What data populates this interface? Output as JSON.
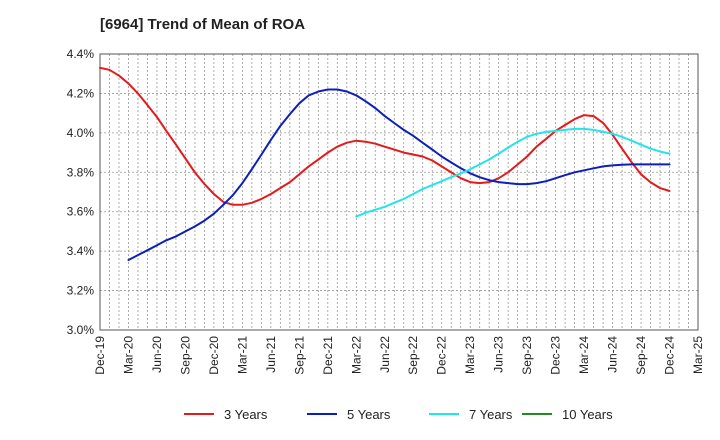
{
  "chart_data": {
    "type": "line",
    "title": "[6964]  Trend of Mean of ROA",
    "xlabel": "",
    "ylabel": "",
    "ylim": [
      3.0,
      4.4
    ],
    "yticks": [
      3.0,
      3.2,
      3.4,
      3.6,
      3.8,
      4.0,
      4.2,
      4.4
    ],
    "ytick_labels": [
      "3.0%",
      "3.2%",
      "3.4%",
      "3.6%",
      "3.8%",
      "4.0%",
      "4.2%",
      "4.4%"
    ],
    "x_categories": [
      "Dec-19",
      "Mar-20",
      "Jun-20",
      "Sep-20",
      "Dec-20",
      "Mar-21",
      "Jun-21",
      "Sep-21",
      "Dec-21",
      "Mar-22",
      "Jun-22",
      "Sep-22",
      "Dec-22",
      "Mar-23",
      "Jun-23",
      "Sep-23",
      "Dec-23",
      "Mar-24",
      "Jun-24",
      "Sep-24",
      "Dec-24",
      "Mar-25"
    ],
    "grid": true,
    "legend_position": "bottom",
    "series": [
      {
        "name": "3 Years",
        "color": "#e41a1c",
        "x": [
          0,
          0.33,
          0.67,
          1,
          1.33,
          1.67,
          2,
          2.33,
          2.67,
          3,
          3.33,
          3.67,
          4,
          4.33,
          4.67,
          5,
          5.33,
          5.67,
          6,
          6.33,
          6.67,
          7,
          7.33,
          7.67,
          8,
          8.33,
          8.67,
          9,
          9.33,
          9.67,
          10,
          10.33,
          10.67,
          11,
          11.33,
          11.67,
          12,
          12.33,
          12.67,
          13,
          13.33,
          13.67,
          14,
          14.33,
          14.67,
          15,
          15.33,
          15.67,
          16,
          16.33,
          16.67,
          17,
          17.33,
          17.67,
          18,
          18.33,
          18.67,
          19,
          19.33,
          19.67,
          20
        ],
        "values": [
          4.33,
          4.32,
          4.29,
          4.25,
          4.2,
          4.14,
          4.08,
          4.01,
          3.94,
          3.87,
          3.8,
          3.74,
          3.69,
          3.65,
          3.635,
          3.635,
          3.645,
          3.665,
          3.69,
          3.72,
          3.75,
          3.79,
          3.83,
          3.865,
          3.9,
          3.93,
          3.95,
          3.96,
          3.955,
          3.945,
          3.93,
          3.915,
          3.9,
          3.89,
          3.88,
          3.86,
          3.83,
          3.8,
          3.77,
          3.75,
          3.745,
          3.75,
          3.77,
          3.8,
          3.84,
          3.88,
          3.93,
          3.97,
          4.01,
          4.04,
          4.07,
          4.09,
          4.085,
          4.05,
          3.99,
          3.92,
          3.85,
          3.79,
          3.75,
          3.72,
          3.705
        ]
      },
      {
        "name": "5 Years",
        "color": "#0d1fb8",
        "x": [
          1,
          1.33,
          1.67,
          2,
          2.33,
          2.67,
          3,
          3.33,
          3.67,
          4,
          4.33,
          4.67,
          5,
          5.33,
          5.67,
          6,
          6.33,
          6.67,
          7,
          7.33,
          7.67,
          8,
          8.33,
          8.67,
          9,
          9.33,
          9.67,
          10,
          10.33,
          10.67,
          11,
          11.33,
          11.67,
          12,
          12.33,
          12.67,
          13,
          13.33,
          13.67,
          14,
          14.33,
          14.67,
          15,
          15.33,
          15.67,
          16,
          16.33,
          16.67,
          17,
          17.33,
          17.67,
          18,
          18.33,
          18.67,
          19,
          19.33,
          19.67,
          20
        ],
        "values": [
          3.355,
          3.38,
          3.405,
          3.43,
          3.455,
          3.475,
          3.5,
          3.525,
          3.555,
          3.59,
          3.635,
          3.685,
          3.745,
          3.815,
          3.89,
          3.965,
          4.035,
          4.095,
          4.15,
          4.19,
          4.21,
          4.22,
          4.22,
          4.21,
          4.19,
          4.16,
          4.125,
          4.085,
          4.05,
          4.015,
          3.985,
          3.95,
          3.915,
          3.88,
          3.85,
          3.82,
          3.795,
          3.775,
          3.76,
          3.75,
          3.745,
          3.74,
          3.74,
          3.745,
          3.755,
          3.77,
          3.785,
          3.8,
          3.81,
          3.82,
          3.83,
          3.835,
          3.838,
          3.84,
          3.84,
          3.84,
          3.84,
          3.84
        ]
      },
      {
        "name": "7 Years",
        "color": "#22e5ec",
        "x": [
          9,
          9.33,
          9.67,
          10,
          10.33,
          10.67,
          11,
          11.33,
          11.67,
          12,
          12.33,
          12.67,
          13,
          13.33,
          13.67,
          14,
          14.33,
          14.67,
          15,
          15.33,
          15.67,
          16,
          16.33,
          16.67,
          17,
          17.33,
          17.67,
          18,
          18.33,
          18.67,
          19,
          19.33,
          19.67,
          20
        ],
        "values": [
          3.575,
          3.595,
          3.61,
          3.625,
          3.645,
          3.665,
          3.69,
          3.715,
          3.735,
          3.755,
          3.775,
          3.795,
          3.815,
          3.84,
          3.865,
          3.895,
          3.925,
          3.955,
          3.98,
          3.995,
          4.005,
          4.01,
          4.015,
          4.02,
          4.02,
          4.015,
          4.005,
          3.995,
          3.98,
          3.96,
          3.94,
          3.92,
          3.905,
          3.895
        ]
      },
      {
        "name": "10 Years",
        "color": "#228b22",
        "x": [],
        "values": []
      }
    ]
  }
}
